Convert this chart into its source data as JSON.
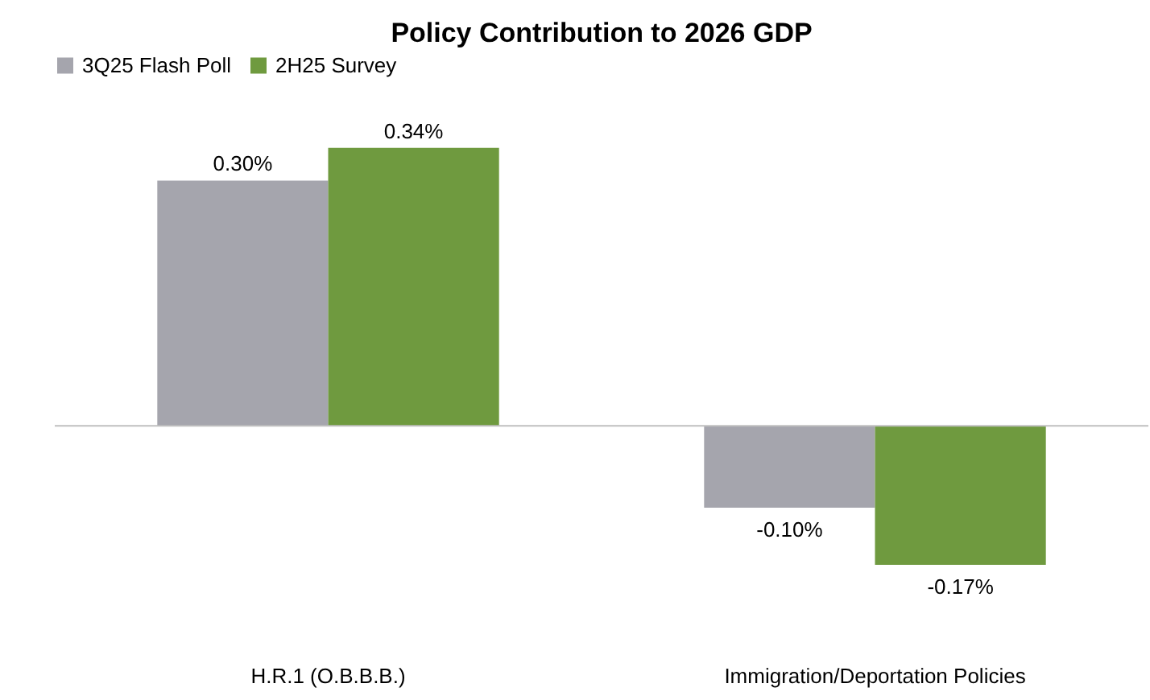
{
  "chart_data": {
    "type": "bar",
    "title": "Policy Contribution to 2026 GDP",
    "categories": [
      "H.R.1 (O.B.B.B.)",
      "Immigration/Deportation Policies"
    ],
    "series": [
      {
        "name": "3Q25 Flash Poll",
        "color": "#a5a5ad",
        "values": [
          0.3,
          -0.1
        ],
        "value_labels": [
          "0.30%",
          "-0.10%"
        ]
      },
      {
        "name": "2H25 Survey",
        "color": "#6f9a3f",
        "values": [
          0.34,
          -0.17
        ],
        "value_labels": [
          "0.34%",
          "-0.17%"
        ]
      }
    ],
    "legend": "top",
    "grid": false
  }
}
